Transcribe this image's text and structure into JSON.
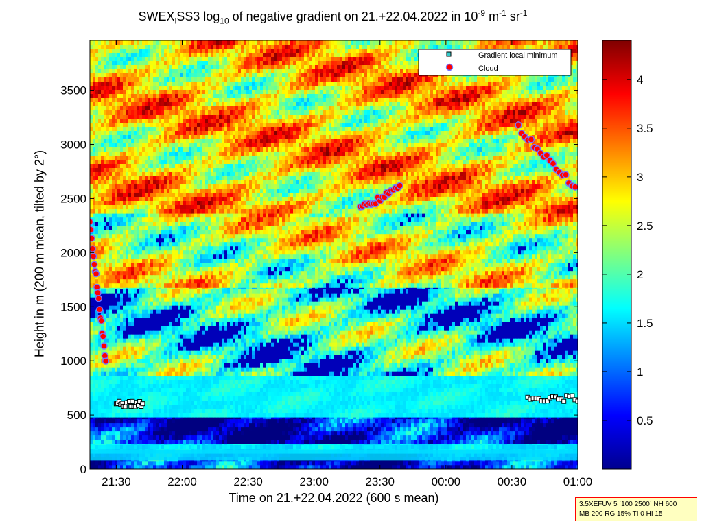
{
  "chart_data": {
    "type": "heatmap",
    "title": {
      "pre": "SWEX",
      "sub1": "l",
      "mid": "SS3 log",
      "sub2": "10",
      "mid2": " of negative gradient on 21.+22.04.2022 in 10",
      "sup1": "-9",
      "mid3": " m",
      "sup2": "-1",
      "mid4": " sr",
      "sup3": "-1"
    },
    "xlabel": "Time on 21.+22.04.2022 (600 s mean)",
    "ylabel": "Height in m (200 m mean, tilted by 2°)",
    "x_ticks": [
      "21:30",
      "22:00",
      "22:30",
      "23:00",
      "23:30",
      "00:00",
      "00:30",
      "01:00"
    ],
    "x_tick_values": [
      21.5,
      22.0,
      22.5,
      23.0,
      23.5,
      24.0,
      24.5,
      25.0
    ],
    "xlim": [
      21.3,
      25.0
    ],
    "y_ticks": [
      "0",
      "500",
      "1000",
      "1500",
      "2000",
      "2500",
      "3000",
      "3500"
    ],
    "y_tick_values": [
      0,
      500,
      1000,
      1500,
      2000,
      2500,
      3000,
      3500
    ],
    "ylim": [
      0,
      3960
    ],
    "colorbar": {
      "min": 0.0,
      "max": 4.4,
      "ticks": [
        "0.5",
        "1",
        "1.5",
        "2",
        "2.5",
        "3",
        "3.5",
        "4"
      ],
      "tick_values": [
        0.5,
        1,
        1.5,
        2,
        2.5,
        3,
        3.5,
        4
      ],
      "colormap": "jet"
    },
    "legend": {
      "position": "top-right",
      "entries": [
        {
          "label": "Gradient local minimum",
          "marker": "square",
          "color": "#33cccc"
        },
        {
          "label": "Cloud",
          "marker": "circle",
          "color": "#ff0000",
          "edge": "#6666ff"
        }
      ]
    },
    "layers": [
      {
        "height": [
          0,
          150
        ],
        "value": 0.6
      },
      {
        "height": [
          150,
          260
        ],
        "value": 1.4
      },
      {
        "height": [
          260,
          500
        ],
        "value": 0.4
      },
      {
        "height": [
          500,
          900
        ],
        "value": 1.5
      },
      {
        "height": [
          900,
          1700
        ],
        "value": 1.8
      },
      {
        "height": [
          1700,
          2400
        ],
        "value": 2.5
      },
      {
        "height": [
          2400,
          3960
        ],
        "value": 2.9
      }
    ],
    "features": [
      {
        "kind": "cloud_track",
        "x": [
          21.3,
          21.42
        ],
        "y": [
          2270,
          1000
        ]
      },
      {
        "kind": "cloud_track",
        "x": [
          23.35,
          23.65
        ],
        "y": [
          2400,
          2600
        ]
      },
      {
        "kind": "cloud_track",
        "x": [
          24.55,
          24.98
        ],
        "y": [
          3150,
          2600
        ]
      },
      {
        "kind": "boundary_track",
        "x": [
          24.62,
          25.0
        ],
        "y": [
          650,
          650
        ]
      },
      {
        "kind": "boundary_track",
        "x": [
          21.5,
          21.7
        ],
        "y": [
          600,
          600
        ]
      }
    ]
  }
}
